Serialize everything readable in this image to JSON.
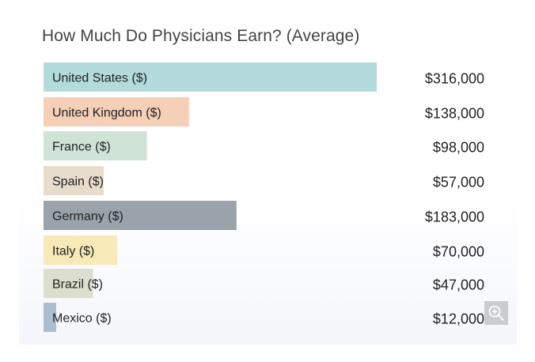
{
  "chart_data": {
    "type": "bar",
    "orientation": "horizontal",
    "title": "How Much Do Physicians Earn? (Average)",
    "categories": [
      "United States ($)",
      "United Kingdom ($)",
      "France ($)",
      "Spain ($)",
      "Germany ($)",
      "Italy ($)",
      "Brazil ($)",
      "Mexico ($)"
    ],
    "values": [
      316000,
      138000,
      98000,
      57000,
      183000,
      70000,
      47000,
      12000
    ],
    "value_labels": [
      "$316,000",
      "$138,000",
      "$98,000",
      "$57,000",
      "$183,000",
      "$70,000",
      "$47,000",
      "$12,000"
    ],
    "colors": [
      "#b3dbdb",
      "#f5cfb8",
      "#cfe3d6",
      "#e8dccb",
      "#9aa3ab",
      "#f7eab8",
      "#dcdfcd",
      "#a9bfd0"
    ],
    "xlim": [
      0,
      316000
    ],
    "grid": false,
    "legend": "none"
  },
  "controls": {
    "zoom_icon": "zoom-in-icon"
  }
}
